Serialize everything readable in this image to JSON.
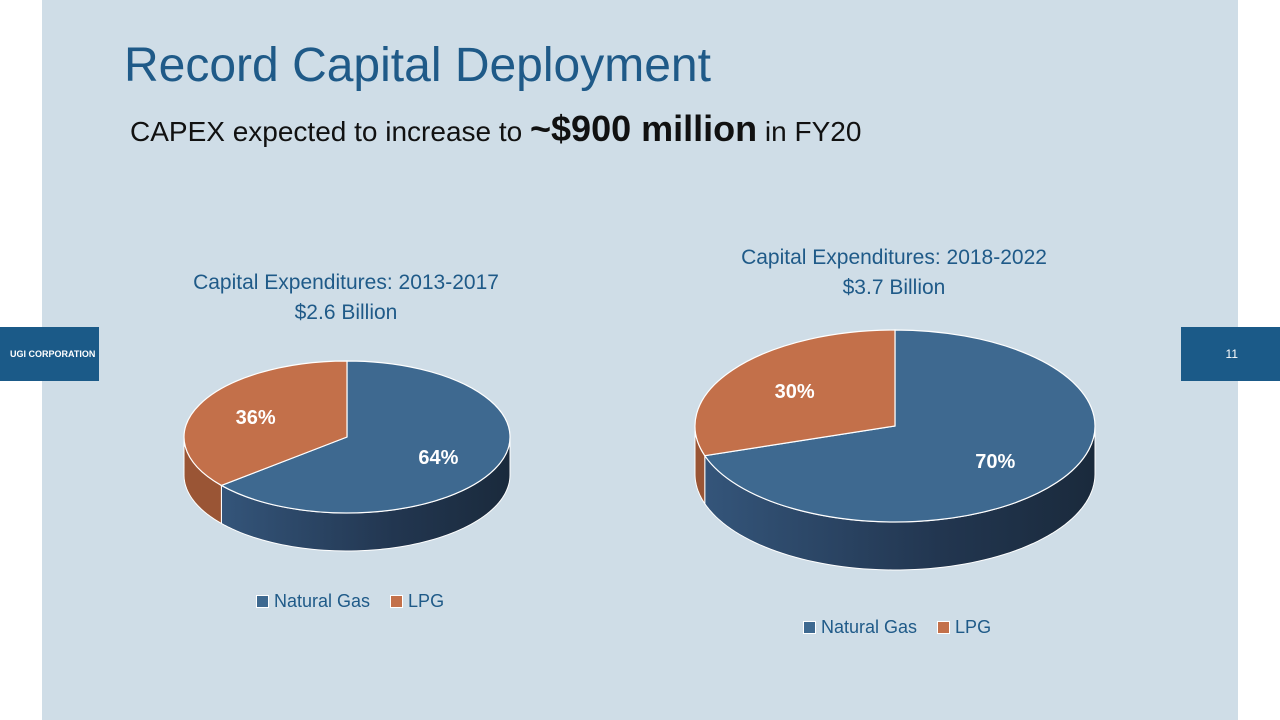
{
  "slide": {
    "title": "Record Capital Deployment",
    "subtitle": {
      "prefix": "CAPEX expected to increase to ",
      "emphasis": "~$900 million",
      "suffix": " in FY20"
    },
    "left_tab": "UGI CORPORATION",
    "page_number": "11"
  },
  "colors": {
    "natural_gas": "#3e6990",
    "natural_gas_side_dark": "#1a2a3c",
    "lpg": "#c3704a",
    "lpg_side": "#9a5535",
    "title_blue": "#1f5a88"
  },
  "chart_data": [
    {
      "type": "pie",
      "title": "Capital Expenditures: 2013-2017",
      "subtitle": "$2.6 Billion",
      "categories": [
        "Natural Gas",
        "LPG"
      ],
      "values": [
        64,
        36
      ],
      "labels": [
        "64%",
        "36%"
      ],
      "legend": [
        "Natural Gas",
        "LPG"
      ],
      "legend_position": "bottom"
    },
    {
      "type": "pie",
      "title": "Capital Expenditures: 2018-2022",
      "subtitle": "$3.7 Billion",
      "categories": [
        "Natural Gas",
        "LPG"
      ],
      "values": [
        70,
        30
      ],
      "labels": [
        "70%",
        "30%"
      ],
      "legend": [
        "Natural Gas",
        "LPG"
      ],
      "legend_position": "bottom"
    }
  ]
}
